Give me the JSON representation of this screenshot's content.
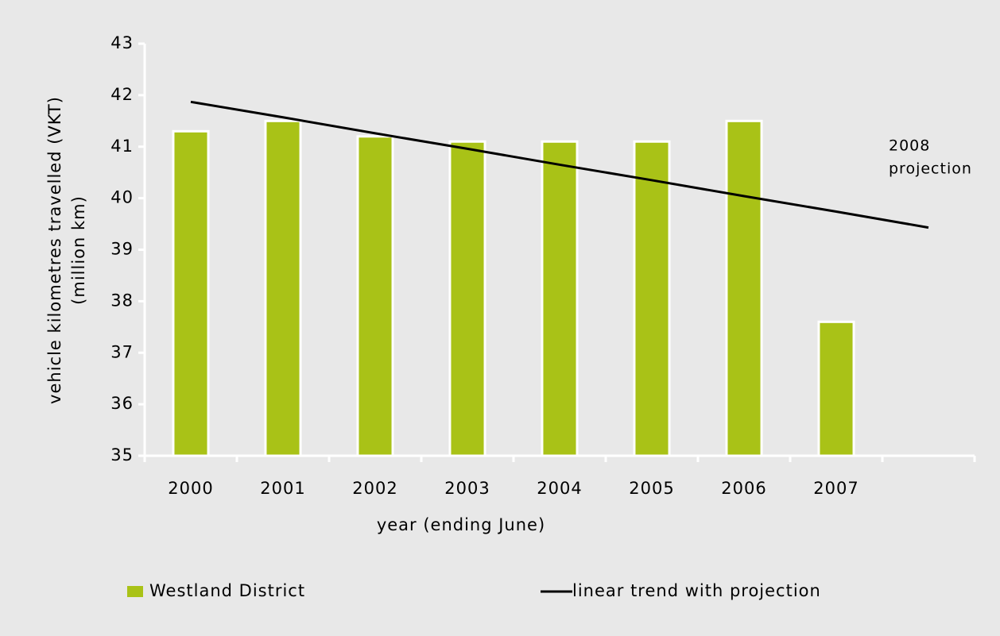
{
  "chart_data": {
    "type": "bar",
    "y_axis_title": [
      "vehicle kilometres travelled (VKT)",
      "(million km)"
    ],
    "x_axis_title": "year (ending June)",
    "annotation": [
      "2008",
      "projection"
    ],
    "categories": [
      "2000",
      "2001",
      "2002",
      "2003",
      "2004",
      "2005",
      "2006",
      "2007",
      null
    ],
    "series": [
      {
        "name": "Westland District",
        "type": "bar",
        "color": "#a9c217",
        "values": [
          41.3,
          41.5,
          41.2,
          41.1,
          41.1,
          41.1,
          41.5,
          37.6,
          null
        ]
      },
      {
        "name": "linear trend with projection",
        "type": "line",
        "color": "#000000",
        "values": [
          41.87,
          41.57,
          41.26,
          40.96,
          40.65,
          40.35,
          40.04,
          39.74,
          39.43
        ]
      }
    ],
    "ylim": [
      35,
      43
    ],
    "yticks": [
      35,
      36,
      37,
      38,
      39,
      40,
      41,
      42,
      43
    ],
    "grid": false
  }
}
